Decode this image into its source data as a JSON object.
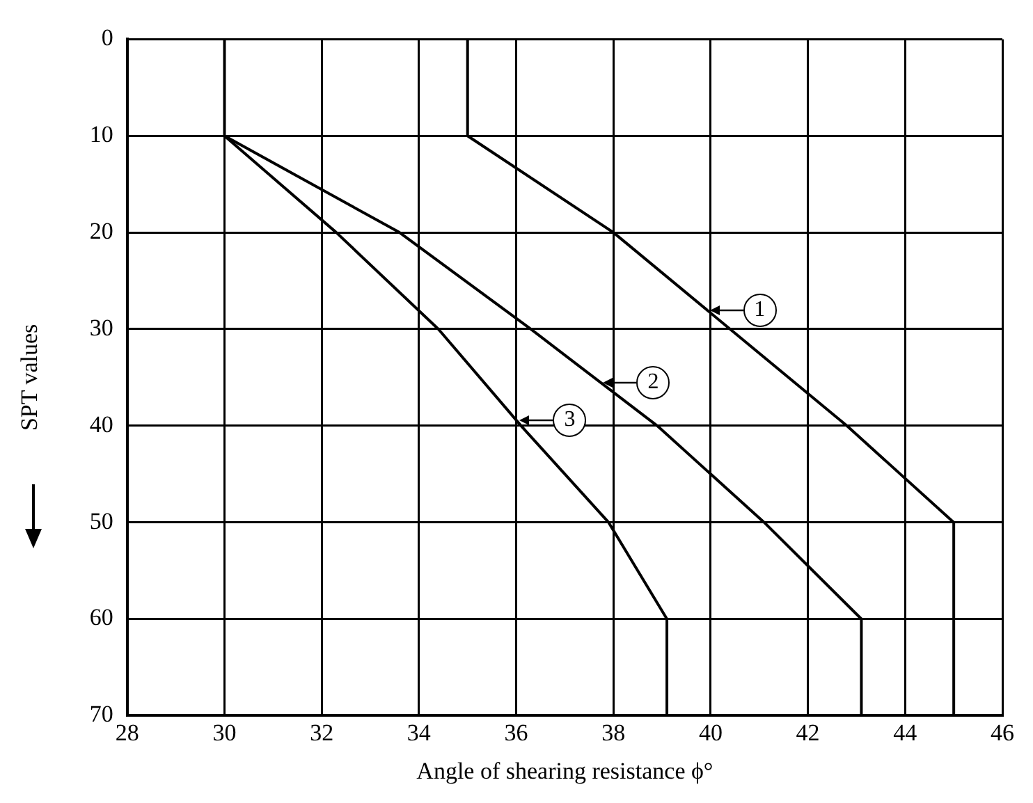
{
  "chart_data": {
    "type": "line",
    "xlabel": "Angle of shearing resistance ϕ°",
    "ylabel": "SPT values",
    "xlim": [
      28,
      46
    ],
    "xticks": [
      28,
      30,
      32,
      34,
      36,
      38,
      40,
      42,
      44,
      46
    ],
    "ylim": [
      70,
      0
    ],
    "yticks": [
      0,
      10,
      20,
      30,
      40,
      50,
      60,
      70
    ],
    "grid": true,
    "legend": "center",
    "marker": "none",
    "line_style": "solid",
    "series": [
      {
        "name": "1",
        "color": "#000000",
        "x": [
          35,
          35,
          38,
          40.4,
          42.8,
          45,
          45
        ],
        "values": [
          0,
          10,
          20,
          30,
          40,
          50,
          70
        ]
      },
      {
        "name": "2",
        "color": "#000000",
        "x": [
          30,
          30,
          33.6,
          36.3,
          38.9,
          41.1,
          43.1,
          43.1
        ],
        "values": [
          0,
          10,
          20,
          30,
          40,
          50,
          60,
          70
        ]
      },
      {
        "name": "3",
        "color": "#000000",
        "x": [
          30,
          32.3,
          34.4,
          36.1,
          37.9,
          39.1,
          39.1
        ],
        "values": [
          10,
          20,
          30,
          40,
          50,
          60,
          70
        ]
      }
    ]
  }
}
